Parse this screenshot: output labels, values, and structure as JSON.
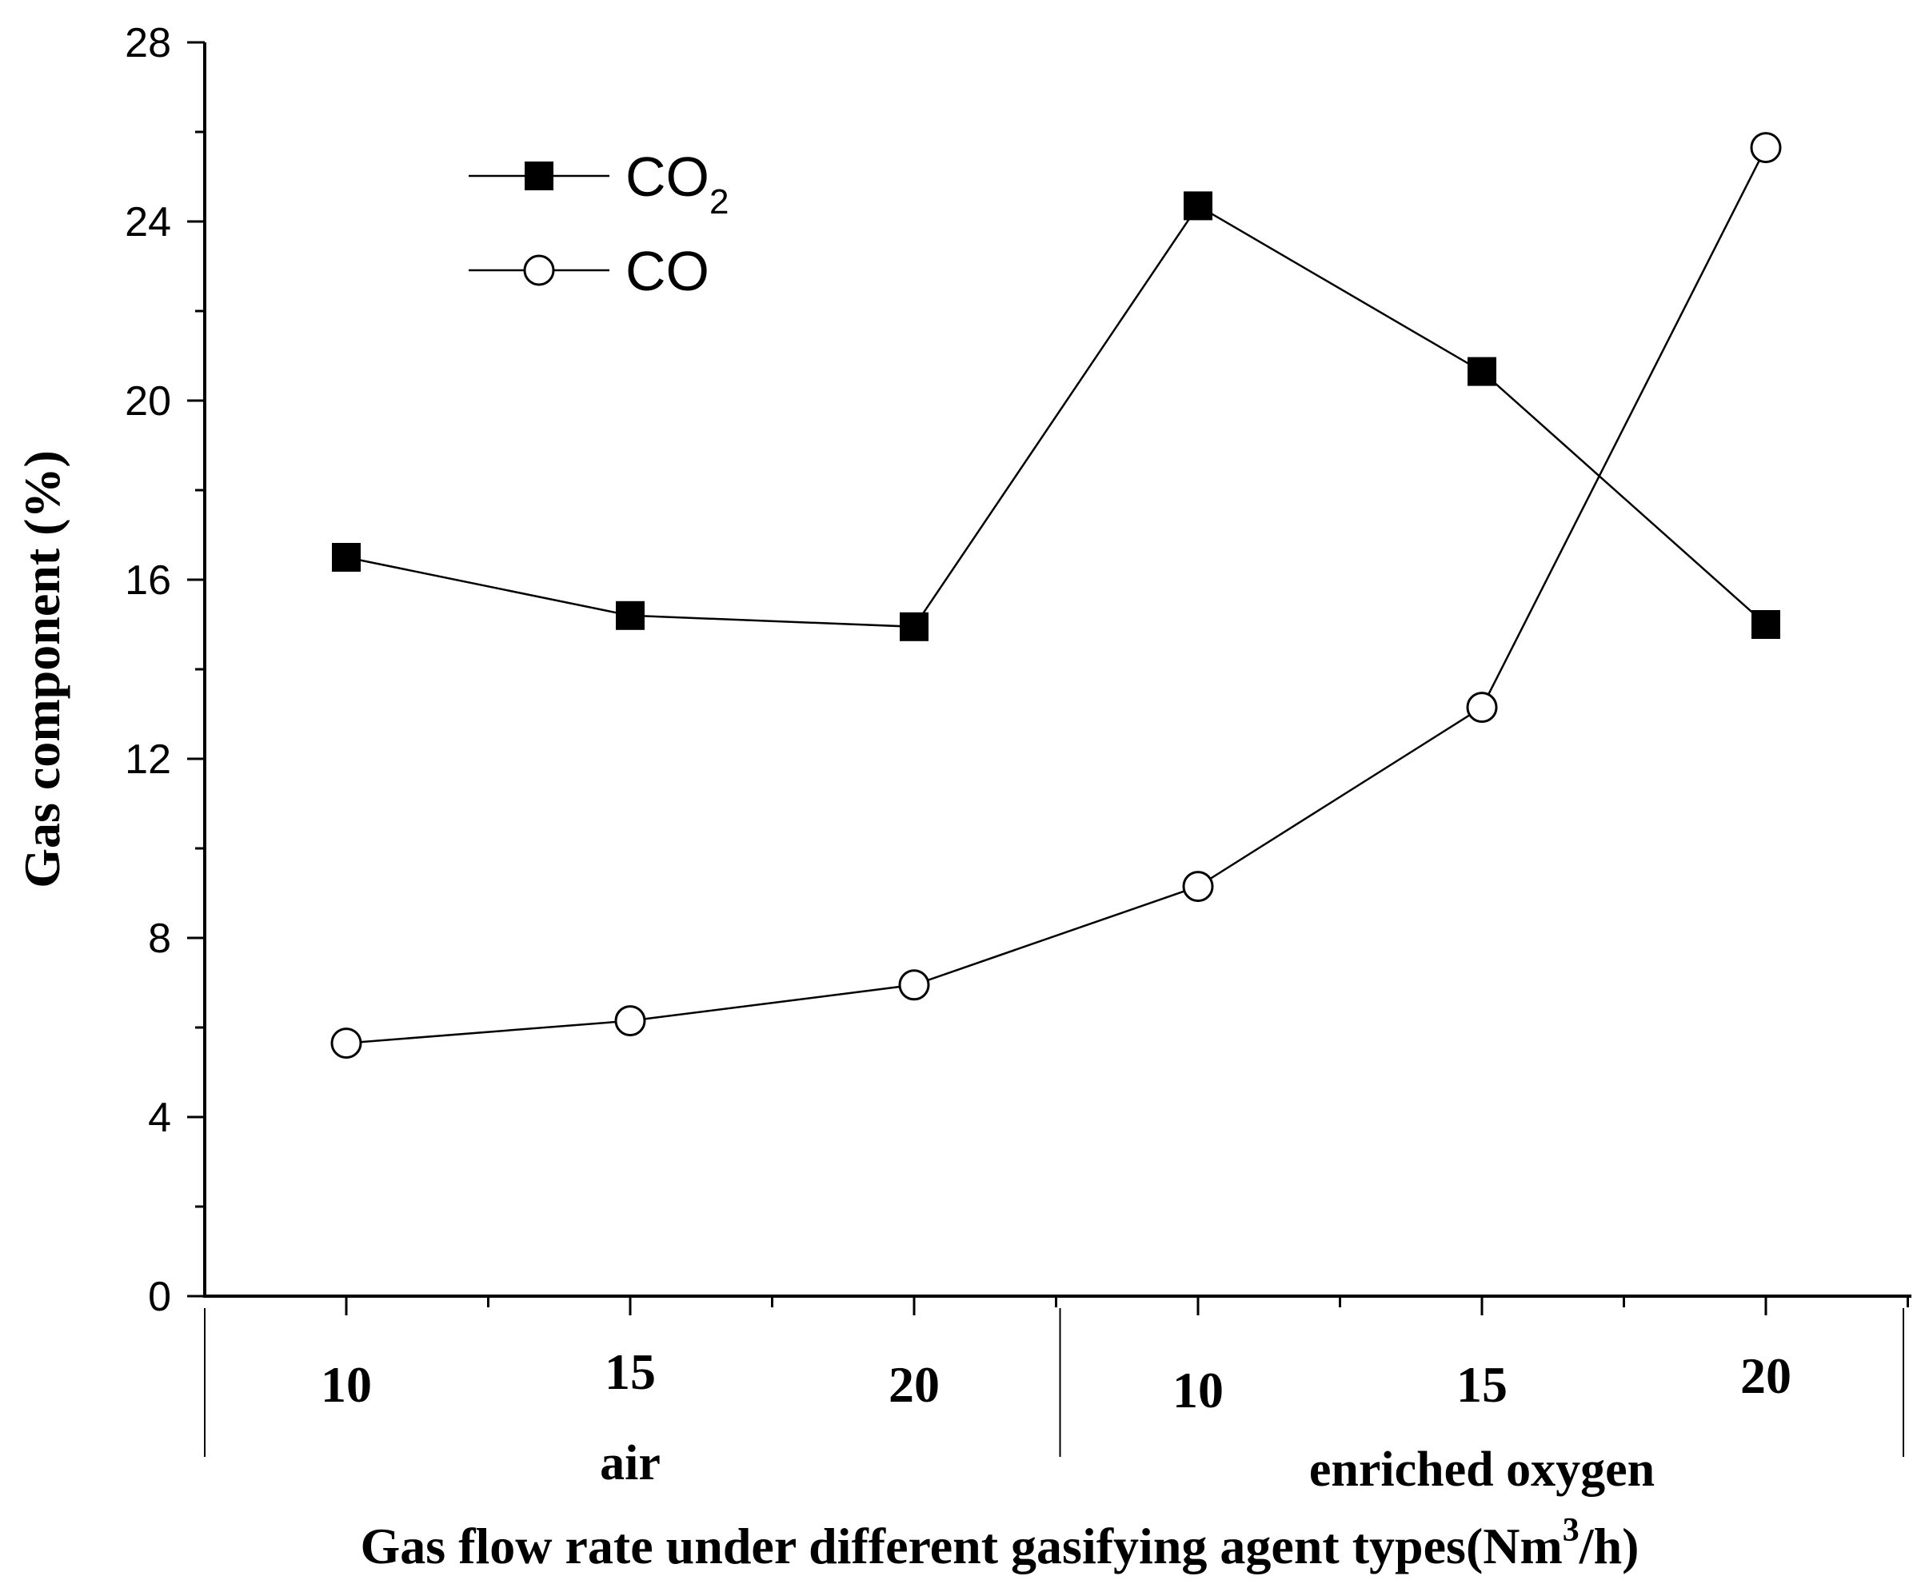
{
  "chart_data": {
    "type": "line",
    "ylabel": "Gas component (%)",
    "xlabel_prefix": "Gas flow rate under different gasifying agent types(Nm",
    "xlabel_sup": "3",
    "xlabel_suffix": "/h)",
    "ylim": [
      0,
      28
    ],
    "yticks": [
      "0",
      "4",
      "8",
      "12",
      "16",
      "20",
      "24",
      "28"
    ],
    "categories": [
      "10",
      "15",
      "20",
      "10",
      "15",
      "20"
    ],
    "groups": [
      {
        "label": "air",
        "count": 3
      },
      {
        "label": "enriched oxygen",
        "count": 3
      }
    ],
    "series": [
      {
        "name": "CO",
        "sub": "2",
        "marker": "filled-square",
        "values": [
          16.5,
          15.2,
          14.95,
          24.35,
          20.65,
          15.0
        ]
      },
      {
        "name": "CO",
        "sub": "",
        "marker": "open-circle",
        "values": [
          5.65,
          6.15,
          6.95,
          9.15,
          13.15,
          25.65
        ]
      }
    ],
    "legend_position": "top-left"
  }
}
